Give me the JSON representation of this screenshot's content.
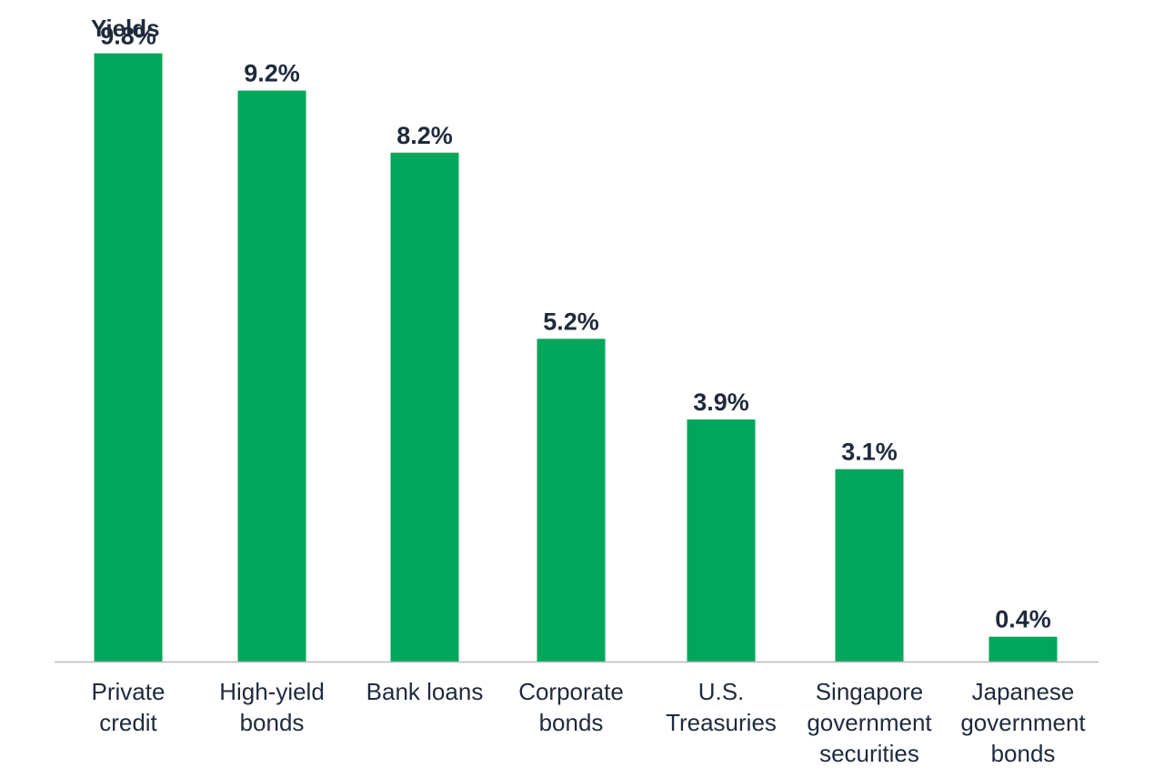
{
  "chart_data": {
    "type": "bar",
    "title": "Yields",
    "categories": [
      [
        "Private",
        "credit"
      ],
      [
        "High-yield",
        "bonds"
      ],
      [
        "Bank loans"
      ],
      [
        "Corporate",
        "bonds"
      ],
      [
        "U.S.",
        "Treasuries"
      ],
      [
        "Singapore",
        "government",
        "securities"
      ],
      [
        "Japanese",
        "government",
        "bonds"
      ]
    ],
    "values": [
      9.8,
      9.2,
      8.2,
      5.2,
      3.9,
      3.1,
      0.4
    ],
    "value_labels": [
      "9.8%",
      "9.2%",
      "8.2%",
      "5.2%",
      "3.9%",
      "3.1%",
      "0.4%"
    ],
    "ylim": [
      0,
      10
    ],
    "grid": false,
    "colors": {
      "bar": "#00a65a",
      "text": "#1f2a3c",
      "axis": "#b8b8b8"
    }
  }
}
